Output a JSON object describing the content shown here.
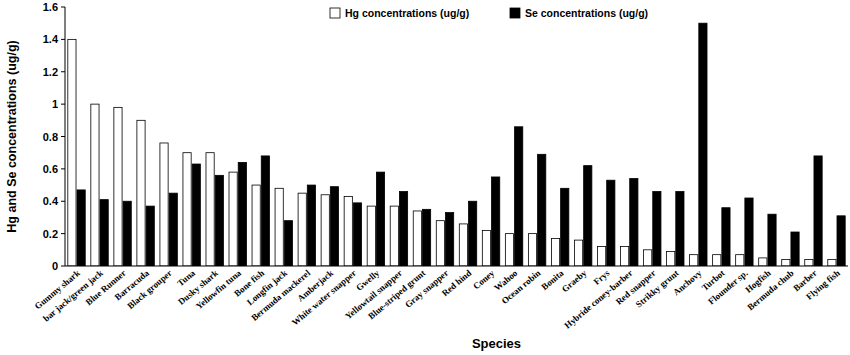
{
  "chart_data": {
    "type": "bar",
    "x_label": "Species",
    "y_label": "Hg and Se concentrations (ug/g)",
    "categories": [
      "Gummy shark",
      "bar jack/green jack",
      "Blue Runner",
      "Barracuda",
      "Black grouper",
      "Tuna",
      "Dusky shark",
      "Yellowfin tuna",
      "Bone fish",
      "Longfin jack",
      "Bermuda mackerel",
      "Amberjack",
      "White water snapper",
      "Gwelly",
      "Yellowtail snapper",
      "Blue-striped grunt",
      "Gray snapper",
      "Red hind",
      "Coney",
      "Wahoo",
      "Ocean robin",
      "Bonita",
      "Graeby",
      "Frys",
      "Hybride coney-barber",
      "Red snapper",
      "Strikky grunt",
      "Anchovy",
      "Turbot",
      "Flounder sp.",
      "Hogfish",
      "Bermuda chub",
      "Barber",
      "Flying fish"
    ],
    "series": [
      {
        "name": "Hg concentrations (ug/g)",
        "color": "#ffffff",
        "values": [
          1.4,
          1.0,
          0.98,
          0.9,
          0.76,
          0.7,
          0.7,
          0.58,
          0.5,
          0.48,
          0.45,
          0.44,
          0.43,
          0.37,
          0.37,
          0.34,
          0.28,
          0.26,
          0.22,
          0.2,
          0.2,
          0.17,
          0.16,
          0.12,
          0.12,
          0.1,
          0.09,
          0.07,
          0.07,
          0.07,
          0.05,
          0.04,
          0.04,
          0.04
        ]
      },
      {
        "name": "Se concentrations (ug/g)",
        "color": "#000000",
        "values": [
          0.47,
          0.41,
          0.4,
          0.37,
          0.45,
          0.63,
          0.56,
          0.64,
          0.68,
          0.28,
          0.5,
          0.49,
          0.39,
          0.58,
          0.46,
          0.35,
          0.33,
          0.4,
          0.55,
          0.86,
          0.69,
          0.48,
          0.62,
          0.53,
          0.54,
          0.46,
          0.46,
          1.5,
          0.36,
          0.42,
          0.32,
          0.21,
          0.68,
          0.31
        ]
      }
    ],
    "ylim": [
      0,
      1.6
    ],
    "yticks": [
      0,
      0.2,
      0.4,
      0.6,
      0.8,
      1,
      1.2,
      1.4,
      1.6
    ],
    "grid": false,
    "legend": "top"
  }
}
